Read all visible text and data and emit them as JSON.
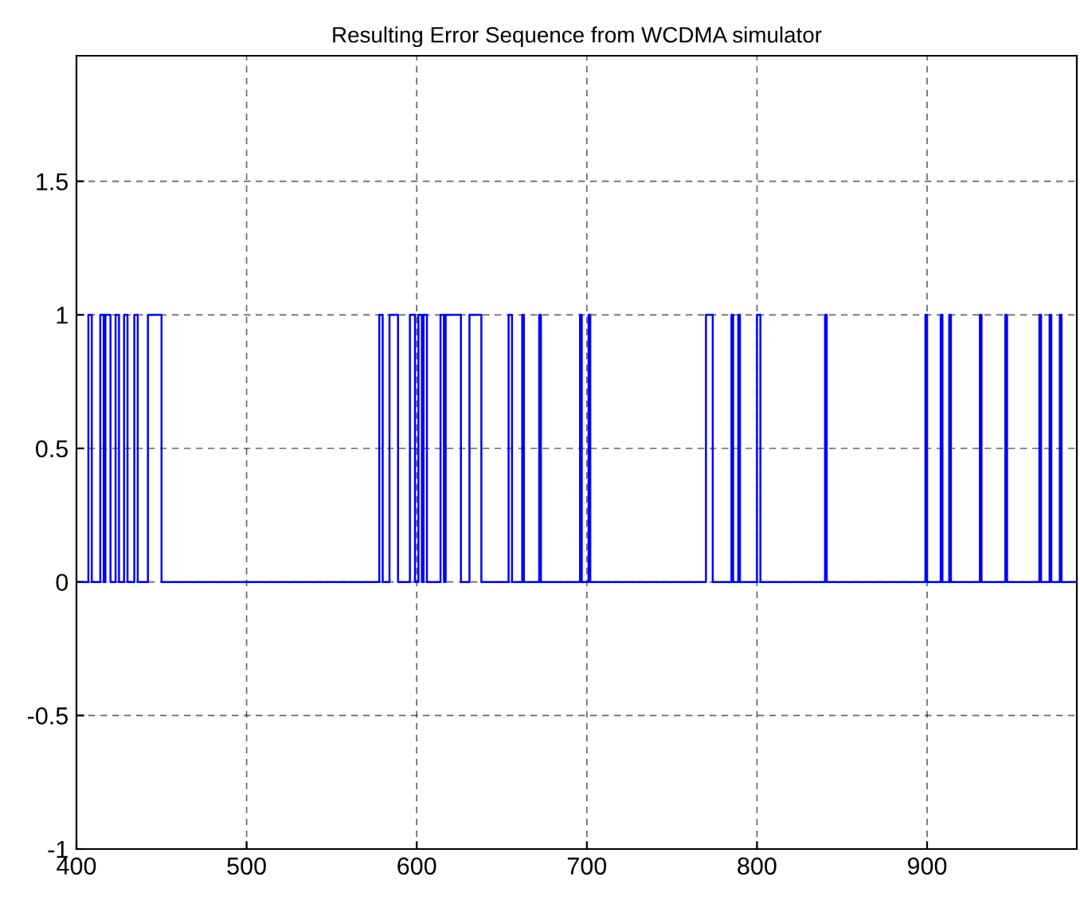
{
  "chart_data": {
    "type": "step",
    "title": "Resulting Error Sequence from WCDMA simulator",
    "series": [
      {
        "color": "#0000ff",
        "x": [
          400,
          407,
          409,
          414,
          416,
          417,
          420,
          423,
          425,
          428,
          430,
          434,
          436,
          442,
          450,
          578,
          580,
          584,
          589,
          596,
          599,
          601,
          603,
          604,
          606,
          614,
          616,
          617,
          626,
          631,
          638,
          654,
          656,
          662,
          663,
          672,
          673,
          696,
          697,
          701,
          702,
          770,
          774,
          785,
          786,
          789,
          790,
          800,
          802,
          840,
          841,
          899,
          900,
          908,
          909,
          913,
          914,
          931,
          932,
          946,
          947,
          966,
          967,
          972,
          973,
          978,
          979,
          988
        ],
        "values": [
          0,
          1,
          0,
          1,
          0,
          1,
          0,
          1,
          0,
          1,
          0,
          1,
          0,
          1,
          0,
          1,
          0,
          1,
          0,
          1,
          0,
          1,
          0,
          1,
          0,
          1,
          0,
          1,
          0,
          1,
          0,
          1,
          0,
          1,
          0,
          1,
          0,
          1,
          0,
          1,
          0,
          1,
          0,
          1,
          0,
          1,
          0,
          1,
          0,
          1,
          0,
          1,
          0,
          1,
          0,
          1,
          0,
          1,
          0,
          1,
          0,
          1,
          0,
          1,
          0,
          1,
          0,
          0
        ]
      }
    ],
    "xlim": [
      400,
      988
    ],
    "xticks": [
      400,
      500,
      600,
      700,
      800,
      900
    ],
    "ylim": [
      -1,
      1.97
    ],
    "yticks": [
      -1,
      -0.5,
      0,
      0.5,
      1,
      1.5
    ],
    "grid": true,
    "line_style": "solid"
  }
}
